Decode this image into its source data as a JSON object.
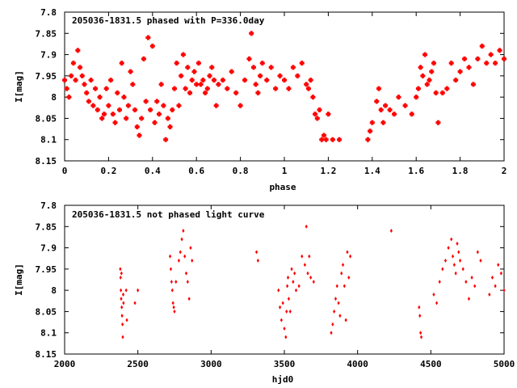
{
  "chart_data": [
    {
      "type": "scatter",
      "title": "205036-1831.5 phased with P=336.0day",
      "xlabel": "phase",
      "ylabel": "I[mag]",
      "xlim": [
        0,
        2
      ],
      "ylim": [
        8.15,
        7.8
      ],
      "y_inverted": true,
      "grid": false,
      "marker": "cross",
      "color": "#ff0000",
      "xticks": [
        "0",
        "0.2",
        "0.4",
        "0.6",
        "0.8",
        "1",
        "1.2",
        "1.4",
        "1.6",
        "1.8",
        "2"
      ],
      "yticks": [
        "7.8",
        "7.85",
        "7.9",
        "7.95",
        "8",
        "8.05",
        "8.1",
        "8.15"
      ],
      "x": [
        0.0,
        0.01,
        0.02,
        0.03,
        0.04,
        0.05,
        0.06,
        0.07,
        0.08,
        0.09,
        0.1,
        0.11,
        0.12,
        0.13,
        0.14,
        0.15,
        0.16,
        0.17,
        0.18,
        0.19,
        0.2,
        0.21,
        0.22,
        0.23,
        0.24,
        0.25,
        0.26,
        0.27,
        0.28,
        0.29,
        0.3,
        0.31,
        0.32,
        0.33,
        0.34,
        0.35,
        0.36,
        0.37,
        0.38,
        0.39,
        0.4,
        0.41,
        0.42,
        0.43,
        0.44,
        0.45,
        0.46,
        0.47,
        0.48,
        0.49,
        0.5,
        0.51,
        0.52,
        0.53,
        0.54,
        0.55,
        0.56,
        0.57,
        0.58,
        0.59,
        0.6,
        0.61,
        0.62,
        0.63,
        0.64,
        0.65,
        0.66,
        0.67,
        0.68,
        0.69,
        0.7,
        0.72,
        0.74,
        0.76,
        0.78,
        0.8,
        0.82,
        0.84,
        0.85,
        0.86,
        0.87,
        0.88,
        0.89,
        0.9,
        0.92,
        0.94,
        0.96,
        0.98,
        1.0,
        1.02,
        1.04,
        1.06,
        1.08,
        1.1,
        1.11,
        1.12,
        1.13,
        1.14,
        1.15,
        1.16,
        1.17,
        1.18,
        1.19,
        1.2,
        1.22,
        1.25,
        1.38,
        1.39,
        1.4,
        1.42,
        1.43,
        1.44,
        1.45,
        1.46,
        1.48,
        1.5,
        1.52,
        1.55,
        1.58,
        1.6,
        1.61,
        1.62,
        1.63,
        1.64,
        1.65,
        1.66,
        1.67,
        1.68,
        1.69,
        1.7,
        1.72,
        1.74,
        1.76,
        1.78,
        1.8,
        1.82,
        1.84,
        1.86,
        1.88,
        1.9,
        1.92,
        1.94,
        1.96,
        1.98,
        2.0
      ],
      "y": [
        7.96,
        7.98,
        8.0,
        7.95,
        7.92,
        7.96,
        7.89,
        7.93,
        7.95,
        7.97,
        7.99,
        8.01,
        7.96,
        8.02,
        7.98,
        8.03,
        8.0,
        8.05,
        8.04,
        7.98,
        8.02,
        7.96,
        8.04,
        8.06,
        7.99,
        8.03,
        7.92,
        8.0,
        8.05,
        8.02,
        7.94,
        7.97,
        8.03,
        8.07,
        8.09,
        8.05,
        7.91,
        8.01,
        7.86,
        8.03,
        7.88,
        8.06,
        8.01,
        8.04,
        7.97,
        8.02,
        8.1,
        8.05,
        8.07,
        8.03,
        7.98,
        7.92,
        8.02,
        7.95,
        7.9,
        7.98,
        7.93,
        7.99,
        7.96,
        7.94,
        7.97,
        7.92,
        7.97,
        7.96,
        7.99,
        7.98,
        7.95,
        7.93,
        7.96,
        8.02,
        7.97,
        7.96,
        7.98,
        7.94,
        7.99,
        8.02,
        7.96,
        7.91,
        7.85,
        7.93,
        7.97,
        7.99,
        7.95,
        7.92,
        7.96,
        7.93,
        7.98,
        7.95,
        7.96,
        7.98,
        7.93,
        7.95,
        7.92,
        7.97,
        7.98,
        7.96,
        8.0,
        8.04,
        8.05,
        8.03,
        8.1,
        8.09,
        8.1,
        8.04,
        8.1,
        8.1,
        8.1,
        8.08,
        8.06,
        8.01,
        7.98,
        8.03,
        8.06,
        8.02,
        8.03,
        8.04,
        8.0,
        8.02,
        8.04,
        8.0,
        7.98,
        7.93,
        7.95,
        7.9,
        7.97,
        7.96,
        7.94,
        7.92,
        7.99,
        8.06,
        7.99,
        7.98,
        7.92,
        7.96,
        7.94,
        7.91,
        7.93,
        7.97,
        7.91,
        7.88,
        7.92,
        7.9,
        7.92,
        7.89,
        7.91
      ]
    },
    {
      "type": "scatter",
      "title": "205036-1831.5 not phased light curve",
      "xlabel": "hjd0",
      "ylabel": "I[mag]",
      "xlim": [
        2000,
        5000
      ],
      "ylim": [
        8.15,
        7.8
      ],
      "y_inverted": true,
      "grid": false,
      "marker": "diamond",
      "color": "#ff0000",
      "xticks": [
        "2000",
        "2500",
        "3000",
        "3500",
        "4000",
        "4500",
        "5000"
      ],
      "yticks": [
        "7.8",
        "7.85",
        "7.9",
        "7.95",
        "8",
        "8.05",
        "8.1",
        "8.15"
      ],
      "x": [
        2380,
        2382,
        2384,
        2386,
        2388,
        2390,
        2392,
        2395,
        2397,
        2400,
        2402,
        2420,
        2425,
        2480,
        2500,
        2720,
        2725,
        2730,
        2735,
        2740,
        2745,
        2750,
        2760,
        2780,
        2790,
        2800,
        2810,
        2820,
        2830,
        2840,
        2850,
        2860,
        2870,
        3310,
        3320,
        3460,
        3470,
        3480,
        3490,
        3500,
        3510,
        3515,
        3520,
        3525,
        3530,
        3540,
        3550,
        3560,
        3570,
        3580,
        3600,
        3620,
        3640,
        3650,
        3660,
        3670,
        3680,
        3700,
        3820,
        3830,
        3840,
        3850,
        3860,
        3870,
        3880,
        3890,
        3900,
        3910,
        3920,
        3930,
        3940,
        3950,
        4230,
        4420,
        4425,
        4430,
        4435,
        4520,
        4540,
        4560,
        4580,
        4600,
        4620,
        4640,
        4650,
        4660,
        4670,
        4680,
        4690,
        4700,
        4720,
        4740,
        4760,
        4780,
        4800,
        4820,
        4840,
        4900,
        4920,
        4940,
        4960,
        4980,
        5000
      ],
      "y": [
        7.95,
        7.97,
        8.0,
        8.02,
        7.96,
        8.04,
        8.06,
        8.08,
        8.11,
        8.01,
        8.03,
        8.0,
        8.07,
        8.03,
        8.0,
        7.92,
        7.95,
        7.98,
        8.0,
        8.03,
        8.04,
        8.05,
        7.98,
        7.93,
        7.91,
        7.88,
        7.86,
        7.92,
        7.96,
        7.98,
        8.02,
        7.9,
        7.93,
        7.91,
        7.93,
        8.0,
        8.04,
        8.07,
        8.03,
        8.09,
        8.11,
        8.05,
        7.99,
        7.97,
        8.02,
        8.05,
        7.95,
        7.98,
        7.96,
        8.0,
        7.99,
        7.92,
        7.94,
        7.85,
        7.96,
        7.92,
        7.97,
        7.98,
        8.1,
        8.08,
        8.05,
        8.02,
        7.99,
        8.03,
        8.06,
        7.96,
        7.94,
        7.99,
        8.07,
        7.91,
        7.97,
        7.92,
        7.86,
        8.04,
        8.06,
        8.1,
        8.11,
        8.01,
        8.03,
        7.98,
        7.95,
        7.93,
        7.9,
        7.88,
        7.92,
        7.94,
        7.96,
        7.89,
        7.91,
        7.93,
        7.95,
        7.98,
        8.02,
        7.97,
        7.99,
        7.91,
        7.93,
        8.01,
        7.97,
        7.99,
        7.94,
        7.96,
        8.0
      ]
    }
  ]
}
